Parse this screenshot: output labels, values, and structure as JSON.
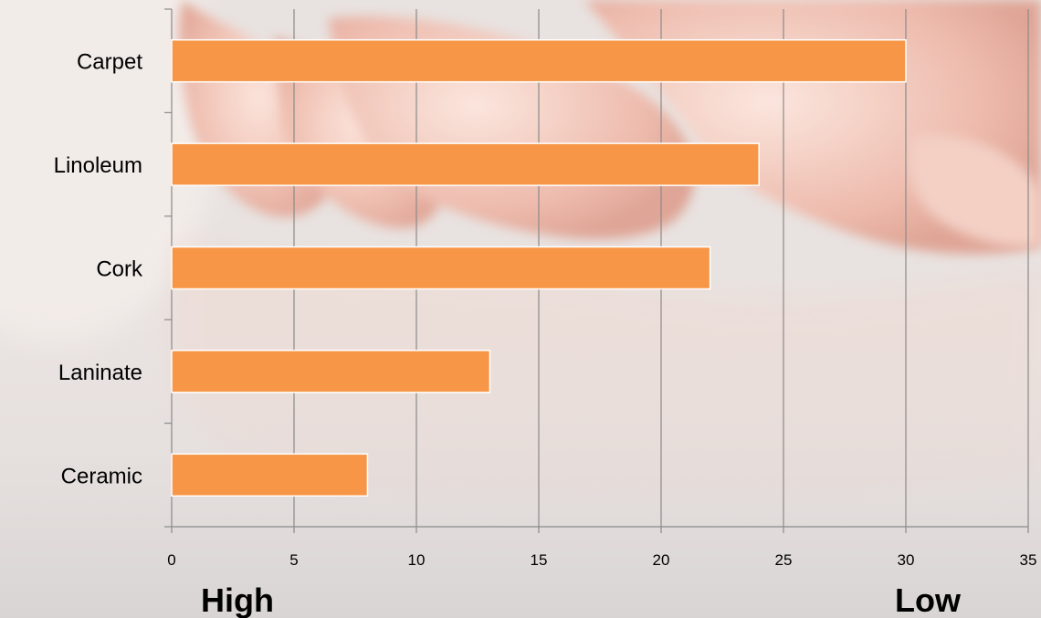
{
  "chart_data": {
    "type": "bar",
    "orientation": "horizontal",
    "categories": [
      "Carpet",
      "Linoleum",
      "Cork",
      "Laninate",
      "Ceramic"
    ],
    "values": [
      30,
      24,
      22,
      13,
      8
    ],
    "xlim": [
      0,
      35
    ],
    "xticks": [
      "0",
      "5",
      "10",
      "15",
      "20",
      "25",
      "30",
      "35"
    ],
    "grid": true,
    "legend": "none",
    "axis_end_labels": {
      "low_end": "High",
      "high_end": "Low"
    },
    "bar_color": "#f79646",
    "bar_border_color": "#ffffff"
  }
}
